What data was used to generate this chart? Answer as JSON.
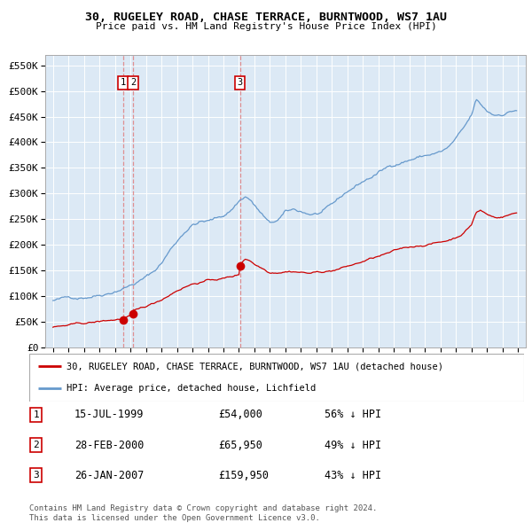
{
  "title": "30, RUGELEY ROAD, CHASE TERRACE, BURNTWOOD, WS7 1AU",
  "subtitle": "Price paid vs. HM Land Registry's House Price Index (HPI)",
  "red_line_label": "30, RUGELEY ROAD, CHASE TERRACE, BURNTWOOD, WS7 1AU (detached house)",
  "blue_line_label": "HPI: Average price, detached house, Lichfield",
  "transactions": [
    {
      "id": 1,
      "date": "15-JUL-1999",
      "price": 54000,
      "pct": "56% ↓ HPI",
      "x_year": 1999.54
    },
    {
      "id": 2,
      "date": "28-FEB-2000",
      "price": 65950,
      "pct": "49% ↓ HPI",
      "x_year": 2000.16
    },
    {
      "id": 3,
      "date": "26-JAN-2007",
      "price": 159950,
      "pct": "43% ↓ HPI",
      "x_year": 2007.07
    }
  ],
  "ylim": [
    0,
    570000
  ],
  "yticks": [
    0,
    50000,
    100000,
    150000,
    200000,
    250000,
    300000,
    350000,
    400000,
    450000,
    500000,
    550000
  ],
  "xlim_start": 1994.5,
  "xlim_end": 2025.5,
  "background_color": "#dce9f5",
  "grid_color": "#ffffff",
  "red_color": "#cc0000",
  "blue_color": "#6699cc",
  "footnote": "Contains HM Land Registry data © Crown copyright and database right 2024.\nThis data is licensed under the Open Government Licence v3.0."
}
